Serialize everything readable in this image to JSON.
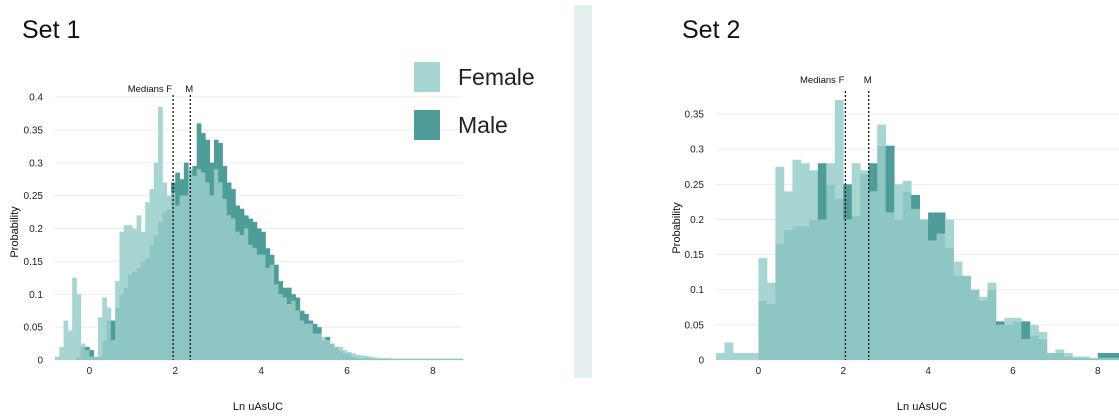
{
  "colors": {
    "female": "#a6d5d3",
    "male": "#4e9d98",
    "overlap": "#8ec6c3",
    "grid": "#e9eded",
    "divider": "#e6f0f1",
    "median_line": "#111111"
  },
  "legend": {
    "entries": [
      "Female",
      "Male"
    ],
    "placement": "top-center"
  },
  "chart_data": [
    {
      "type": "histogram",
      "title": "Set 1",
      "xlabel": "Ln uAsUC",
      "ylabel": "Probability",
      "median_text": "Medians F",
      "median_male_text": "M",
      "x_ticks": [
        "0",
        "2",
        "4",
        "6",
        "8"
      ],
      "y_ticks": [
        "0",
        "0.05",
        "0.1",
        "0.15",
        "0.2",
        "0.25",
        "0.3",
        "0.35",
        "0.4"
      ],
      "xlim": [
        -0.8,
        8.7
      ],
      "ylim": [
        0,
        0.4
      ],
      "grid": true,
      "medians": {
        "female": 1.95,
        "male": 2.35
      },
      "bin_start": -0.8,
      "bin_width": 0.1,
      "series": [
        {
          "name": "Female",
          "values": [
            0.005,
            0.02,
            0.06,
            0.045,
            0.125,
            0.1,
            0.025,
            0.015,
            0.005,
            0.005,
            0.065,
            0.095,
            0.08,
            0.03,
            0.12,
            0.195,
            0.205,
            0.205,
            0.2,
            0.22,
            0.195,
            0.24,
            0.26,
            0.3,
            0.385,
            0.27,
            0.25,
            0.255,
            0.235,
            0.25,
            0.25,
            0.29,
            0.28,
            0.29,
            0.285,
            0.27,
            0.25,
            0.29,
            0.27,
            0.245,
            0.22,
            0.215,
            0.195,
            0.19,
            0.2,
            0.175,
            0.17,
            0.16,
            0.16,
            0.14,
            0.145,
            0.115,
            0.1,
            0.095,
            0.085,
            0.09,
            0.075,
            0.06,
            0.055,
            0.055,
            0.04,
            0.04,
            0.035,
            0.03,
            0.025,
            0.02,
            0.02,
            0.015,
            0.012,
            0.01,
            0.008,
            0.007,
            0.006,
            0.005,
            0.004,
            0.003,
            0.003,
            0.003,
            0.002,
            0.002,
            0.002,
            0.002,
            0.002,
            0.002,
            0.002,
            0.002,
            0.002,
            0.002,
            0.002,
            0.002,
            0.002,
            0.002,
            0.002,
            0.002,
            0.002
          ]
        },
        {
          "name": "Male",
          "values": [
            0,
            0,
            0,
            0,
            0,
            0.005,
            0.02,
            0.02,
            0.015,
            0.005,
            0.005,
            0.03,
            0.06,
            0.06,
            0.08,
            0.1,
            0.11,
            0.13,
            0.135,
            0.14,
            0.15,
            0.155,
            0.175,
            0.19,
            0.21,
            0.225,
            0.23,
            0.27,
            0.285,
            0.275,
            0.3,
            0.29,
            0.295,
            0.36,
            0.345,
            0.335,
            0.3,
            0.335,
            0.33,
            0.295,
            0.27,
            0.26,
            0.235,
            0.23,
            0.22,
            0.215,
            0.21,
            0.2,
            0.195,
            0.17,
            0.16,
            0.145,
            0.12,
            0.11,
            0.11,
            0.1,
            0.095,
            0.075,
            0.07,
            0.06,
            0.055,
            0.05,
            0.03,
            0.035,
            0.025,
            0.02,
            0.015,
            0.01,
            0.01,
            0.005,
            0.004,
            0.003,
            0.003,
            0.002,
            0.002,
            0.002,
            0.002,
            0.002,
            0.002,
            0.002,
            0.002,
            0.002,
            0.002,
            0.002,
            0.002,
            0.002,
            0.002,
            0.002,
            0.002,
            0.002,
            0.002,
            0.002,
            0.002,
            0.002,
            0.002
          ]
        }
      ]
    },
    {
      "type": "histogram",
      "title": "Set 2",
      "xlabel": "Ln uAsUC",
      "ylabel": "Probability",
      "median_text": "Medians F",
      "median_male_text": "M",
      "x_ticks": [
        "0",
        "2",
        "4",
        "6",
        "8"
      ],
      "y_ticks": [
        "0",
        "0.05",
        "0.1",
        "0.15",
        "0.2",
        "0.25",
        "0.3",
        "0.35"
      ],
      "xlim": [
        -1,
        8.5
      ],
      "ylim": [
        0,
        0.38
      ],
      "grid": true,
      "medians": {
        "female": 2.05,
        "male": 2.6
      },
      "bin_start": -1,
      "bin_width": 0.2,
      "series": [
        {
          "name": "Female",
          "values": [
            0.01,
            0.025,
            0.01,
            0.01,
            0.01,
            0.145,
            0.11,
            0.275,
            0.24,
            0.285,
            0.28,
            0.27,
            0.2,
            0.28,
            0.37,
            0.2,
            0.28,
            0.27,
            0.24,
            0.335,
            0.21,
            0.25,
            0.255,
            0.215,
            0.2,
            0.17,
            0.18,
            0.2,
            0.14,
            0.12,
            0.1,
            0.09,
            0.11,
            0.05,
            0.06,
            0.06,
            0.03,
            0.05,
            0.04,
            0.01,
            0.015,
            0.01,
            0.005,
            0.005,
            0.003,
            0.003,
            0.003,
            0.003
          ]
        },
        {
          "name": "Male",
          "values": [
            0,
            0,
            0,
            0,
            0,
            0.085,
            0.08,
            0.165,
            0.185,
            0.19,
            0.19,
            0.2,
            0.28,
            0.25,
            0.23,
            0.25,
            0.205,
            0.265,
            0.28,
            0.305,
            0.305,
            0.2,
            0.24,
            0.235,
            0.2,
            0.21,
            0.21,
            0.16,
            0.12,
            0.12,
            0.1,
            0.085,
            0.1,
            0.055,
            0.05,
            0.055,
            0.055,
            0.035,
            0.03,
            0.01,
            0.01,
            0.005,
            0.003,
            0.003,
            0.002,
            0.01,
            0.01,
            0.01
          ]
        }
      ]
    }
  ]
}
